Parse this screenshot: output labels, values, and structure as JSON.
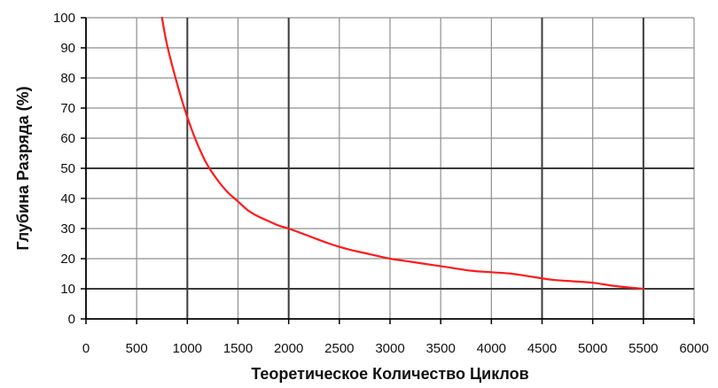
{
  "chart_data": {
    "type": "line",
    "title": "",
    "xlabel": "Теоретическое Количество Циклов",
    "ylabel": "Глубина Разряда (%)",
    "xlim": [
      0,
      6000
    ],
    "ylim": [
      0,
      100
    ],
    "xticks": [
      0,
      500,
      1000,
      1500,
      2000,
      2500,
      3000,
      3500,
      4000,
      4500,
      5000,
      5500,
      6000
    ],
    "yticks": [
      0,
      10,
      20,
      30,
      40,
      50,
      60,
      70,
      80,
      90,
      100
    ],
    "grid": true,
    "legend": "none",
    "series": [
      {
        "color": "#ff1a1a",
        "points": [
          [
            750,
            100
          ],
          [
            800,
            91
          ],
          [
            900,
            78
          ],
          [
            1000,
            67
          ],
          [
            1100,
            58
          ],
          [
            1200,
            51
          ],
          [
            1300,
            46
          ],
          [
            1400,
            42
          ],
          [
            1500,
            39
          ],
          [
            1600,
            36
          ],
          [
            1700,
            34
          ],
          [
            1800,
            32.5
          ],
          [
            1900,
            31
          ],
          [
            2000,
            30
          ],
          [
            2200,
            27.5
          ],
          [
            2400,
            25
          ],
          [
            2600,
            23
          ],
          [
            2800,
            21.5
          ],
          [
            3000,
            20
          ],
          [
            3200,
            19
          ],
          [
            3400,
            18
          ],
          [
            3600,
            17
          ],
          [
            3800,
            16
          ],
          [
            4000,
            15.5
          ],
          [
            4200,
            15
          ],
          [
            4400,
            14
          ],
          [
            4600,
            13
          ],
          [
            4800,
            12.5
          ],
          [
            5000,
            12
          ],
          [
            5200,
            11
          ],
          [
            5400,
            10.3
          ],
          [
            5500,
            10
          ]
        ]
      }
    ]
  }
}
